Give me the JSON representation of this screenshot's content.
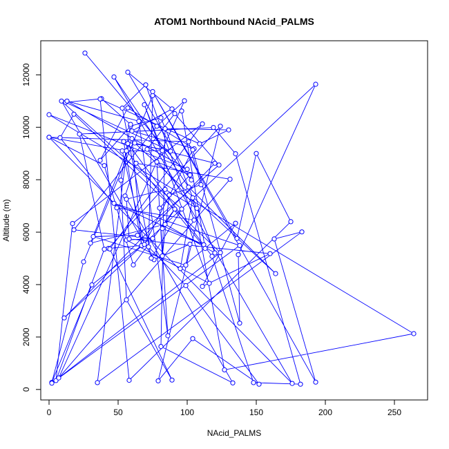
{
  "chart_data": {
    "type": "scatter",
    "title": "ATOM1 Northbound NAcid_PALMS",
    "xlabel": "NAcid_PALMS",
    "ylabel": "Altitude (m)",
    "xlim": [
      -6,
      274
    ],
    "ylim": [
      -400,
      13300
    ],
    "x_ticks": [
      0,
      50,
      100,
      150,
      200,
      250
    ],
    "y_ticks": [
      0,
      2000,
      4000,
      6000,
      8000,
      10000,
      12000
    ],
    "grid": false,
    "legend": "none",
    "connected": true,
    "marker": "open-circle",
    "series": [
      {
        "color": "#0000ff",
        "points": [
          [
            26,
            12830
          ],
          [
            103,
            7990
          ],
          [
            57,
            12100
          ],
          [
            89,
            10700
          ],
          [
            60,
            9860
          ],
          [
            105,
            9180
          ],
          [
            57,
            10740
          ],
          [
            37,
            8740
          ],
          [
            59,
            10050
          ],
          [
            81,
            10360
          ],
          [
            120,
            5210
          ],
          [
            84,
            6300
          ],
          [
            30,
            5580
          ],
          [
            60,
            9570
          ],
          [
            67,
            5490
          ],
          [
            31,
            3990
          ],
          [
            2,
            270
          ],
          [
            25,
            4870
          ],
          [
            75,
            11210
          ],
          [
            72,
            5440
          ],
          [
            99,
            3960
          ],
          [
            152,
            200
          ],
          [
            104,
            1940
          ],
          [
            79,
            330
          ],
          [
            124,
            10040
          ],
          [
            43,
            5380
          ],
          [
            67,
            5490
          ],
          [
            54,
            9460
          ],
          [
            88,
            9090
          ],
          [
            12,
            10950
          ],
          [
            38,
            11090
          ],
          [
            59,
            10110
          ],
          [
            52,
            7980
          ],
          [
            56,
            3420
          ],
          [
            89,
            360
          ],
          [
            44,
            5360
          ],
          [
            111,
            10130
          ],
          [
            17,
            6330
          ],
          [
            5,
            340
          ],
          [
            40,
            5350
          ],
          [
            22,
            9740
          ],
          [
            119,
            9990
          ],
          [
            135,
            8990
          ],
          [
            182,
            200
          ],
          [
            148,
            260
          ],
          [
            118,
            5080
          ],
          [
            57,
            9380
          ],
          [
            35,
            260
          ],
          [
            183,
            6010
          ],
          [
            163,
            5740
          ],
          [
            193,
            280
          ],
          [
            75,
            11360
          ],
          [
            136,
            5760
          ],
          [
            150,
            9000
          ],
          [
            175,
            6400
          ],
          [
            58,
            350
          ],
          [
            37,
            11080
          ],
          [
            109,
            9370
          ],
          [
            130,
            9900
          ],
          [
            84,
            9950
          ],
          [
            81,
            1640
          ],
          [
            133,
            250
          ],
          [
            55,
            7380
          ],
          [
            63,
            8630
          ],
          [
            131,
            8020
          ],
          [
            7,
            440
          ],
          [
            98,
            11010
          ],
          [
            78,
            10040
          ],
          [
            18,
            6090
          ],
          [
            75,
            5760
          ],
          [
            56,
            5700
          ],
          [
            116,
            4050
          ],
          [
            69,
            10860
          ],
          [
            82,
            9110
          ],
          [
            53,
            9100
          ],
          [
            69,
            5530
          ],
          [
            104,
            9140
          ],
          [
            138,
            2530
          ],
          [
            137,
            5140
          ],
          [
            193,
            11640
          ],
          [
            11,
            2730
          ],
          [
            120,
            8630
          ],
          [
            62,
            9400
          ],
          [
            164,
            4420
          ],
          [
            101,
            7720
          ],
          [
            47,
            11920
          ],
          [
            176,
            230
          ],
          [
            0,
            9620
          ],
          [
            101,
            9450
          ],
          [
            110,
            7810
          ],
          [
            87,
            7420
          ],
          [
            82,
            5090
          ],
          [
            78,
            8680
          ],
          [
            102,
            8180
          ],
          [
            80,
            6920
          ],
          [
            86,
            2050
          ],
          [
            65,
            10230
          ],
          [
            13,
            11000
          ],
          [
            100,
            8400
          ],
          [
            0,
            10480
          ],
          [
            264,
            2130
          ],
          [
            127,
            750
          ],
          [
            104,
            7310
          ],
          [
            95,
            4610
          ],
          [
            135,
            6340
          ],
          [
            111,
            3930
          ],
          [
            160,
            5180
          ],
          [
            58,
            5740
          ],
          [
            56,
            7260
          ],
          [
            84,
            7630
          ],
          [
            107,
            6910
          ],
          [
            71,
            9160
          ],
          [
            91,
            10520
          ],
          [
            123,
            8560
          ],
          [
            64,
            5880
          ],
          [
            32,
            5830
          ],
          [
            99,
            4740
          ],
          [
            102,
            5540
          ],
          [
            76,
            4950
          ],
          [
            9,
            11000
          ],
          [
            96,
            6880
          ],
          [
            74,
            5010
          ],
          [
            53,
            10730
          ],
          [
            70,
            11620
          ],
          [
            105,
            6460
          ],
          [
            49,
            6930
          ],
          [
            8,
            9600
          ],
          [
            18,
            10500
          ],
          [
            124,
            5220
          ],
          [
            2,
            240
          ],
          [
            138,
            5490
          ],
          [
            47,
            7100
          ],
          [
            112,
            5520
          ],
          [
            82,
            6140
          ],
          [
            91,
            6880
          ],
          [
            61,
            4750
          ],
          [
            40,
            8540
          ],
          [
            0,
            9620
          ],
          [
            56,
            9100
          ],
          [
            113,
            5380
          ],
          [
            96,
            10620
          ]
        ]
      }
    ]
  }
}
